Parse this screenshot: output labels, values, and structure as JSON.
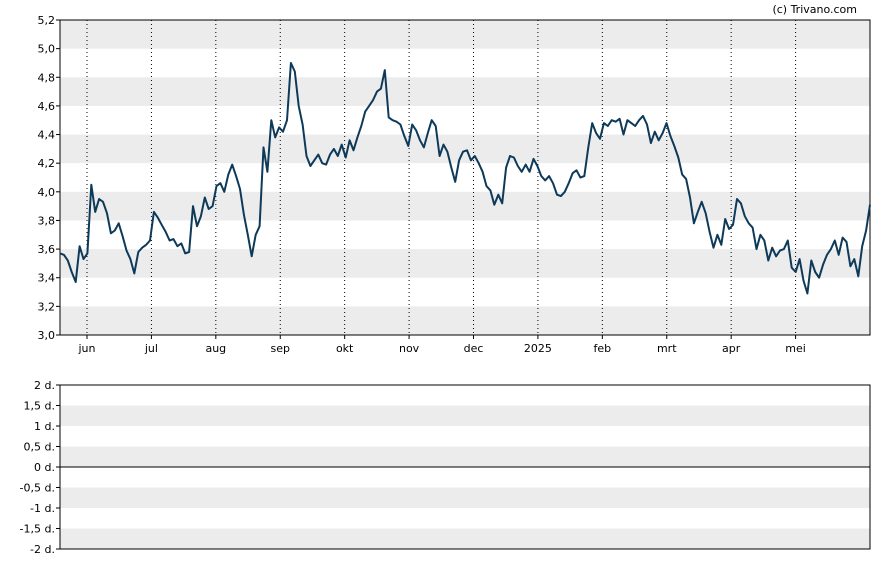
{
  "credit": "(c) Trivano.com",
  "colors": {
    "line": "#0e3a5a",
    "band": "#ececec",
    "frame": "#000000",
    "grid": "#000000"
  },
  "chart_data": [
    {
      "type": "line",
      "title": "",
      "xlabel": "",
      "ylabel": "",
      "ylim": [
        3.0,
        5.2
      ],
      "yticks": [
        "3,0",
        "3,2",
        "3,4",
        "3,6",
        "3,8",
        "4,0",
        "4,2",
        "4,4",
        "4,6",
        "4,8",
        "5,0",
        "5,2"
      ],
      "xtick_labels": [
        "jun",
        "jul",
        "aug",
        "sep",
        "okt",
        "nov",
        "dec",
        "2025",
        "feb",
        "mrt",
        "apr",
        "mei"
      ],
      "grid": "vertical dotted at month starts, alternating horizontal bands",
      "series": [
        {
          "values": [
            3.57,
            3.56,
            3.52,
            3.44,
            3.37,
            3.62,
            3.53,
            3.57,
            4.05,
            3.86,
            3.95,
            3.93,
            3.85,
            3.71,
            3.73,
            3.78,
            3.69,
            3.59,
            3.53,
            3.43,
            3.58,
            3.61,
            3.63,
            3.66,
            3.86,
            3.82,
            3.77,
            3.72,
            3.66,
            3.67,
            3.62,
            3.64,
            3.57,
            3.58,
            3.9,
            3.76,
            3.83,
            3.96,
            3.88,
            3.9,
            4.04,
            4.06,
            4.0,
            4.12,
            4.19,
            4.11,
            4.02,
            3.84,
            3.7,
            3.55,
            3.7,
            3.76,
            4.31,
            4.14,
            4.5,
            4.38,
            4.45,
            4.42,
            4.5,
            4.9,
            4.84,
            4.6,
            4.47,
            4.25,
            4.18,
            4.22,
            4.26,
            4.2,
            4.19,
            4.26,
            4.3,
            4.25,
            4.33,
            4.24,
            4.36,
            4.29,
            4.38,
            4.46,
            4.56,
            4.6,
            4.64,
            4.7,
            4.72,
            4.85,
            4.52,
            4.5,
            4.49,
            4.47,
            4.39,
            4.32,
            4.47,
            4.43,
            4.36,
            4.31,
            4.41,
            4.5,
            4.46,
            4.25,
            4.33,
            4.28,
            4.17,
            4.07,
            4.22,
            4.28,
            4.29,
            4.22,
            4.25,
            4.2,
            4.14,
            4.04,
            4.01,
            3.91,
            3.98,
            3.92,
            4.17,
            4.25,
            4.24,
            4.18,
            4.14,
            4.19,
            4.14,
            4.23,
            4.18,
            4.11,
            4.08,
            4.11,
            4.06,
            3.98,
            3.97,
            4.0,
            4.06,
            4.13,
            4.15,
            4.1,
            4.11,
            4.31,
            4.48,
            4.41,
            4.37,
            4.48,
            4.46,
            4.5,
            4.49,
            4.51,
            4.4,
            4.5,
            4.48,
            4.46,
            4.5,
            4.53,
            4.47,
            4.34,
            4.42,
            4.36,
            4.41,
            4.48,
            4.39,
            4.32,
            4.24,
            4.12,
            4.09,
            3.96,
            3.78,
            3.86,
            3.93,
            3.85,
            3.72,
            3.61,
            3.7,
            3.63,
            3.81,
            3.74,
            3.77,
            3.95,
            3.92,
            3.83,
            3.78,
            3.75,
            3.6,
            3.7,
            3.66,
            3.52,
            3.61,
            3.55,
            3.59,
            3.6,
            3.66,
            3.47,
            3.44,
            3.53,
            3.38,
            3.29,
            3.52,
            3.44,
            3.4,
            3.49,
            3.56,
            3.6,
            3.66,
            3.56,
            3.68,
            3.65,
            3.48,
            3.53,
            3.41,
            3.62,
            3.73,
            3.91
          ]
        }
      ]
    },
    {
      "type": "line",
      "title": "",
      "xlabel": "",
      "ylabel": "",
      "ylim": [
        -2,
        2
      ],
      "yticks": [
        "2 d.",
        "1,5 d.",
        "1 d.",
        "0,5 d.",
        "0 d.",
        "-0,5 d.",
        "-1 d.",
        "-1,5 d.",
        "-2 d."
      ],
      "grid": "alternating horizontal bands, solid zero line",
      "series": []
    }
  ]
}
